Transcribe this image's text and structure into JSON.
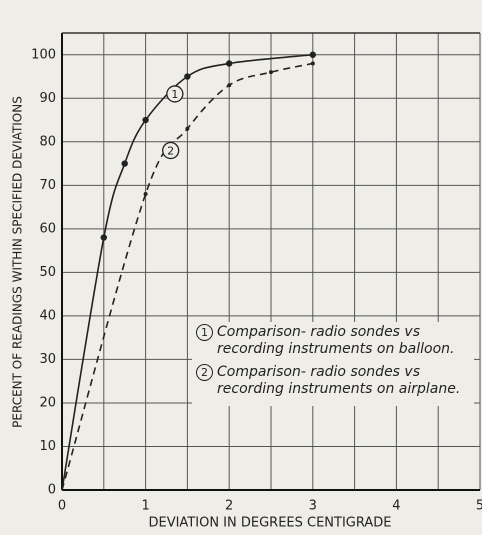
{
  "chart_data": {
    "type": "line",
    "xlabel": "DEVIATION IN DEGREES CENTIGRADE",
    "ylabel": "PERCENT OF READINGS WITHIN SPECIFIED DEVIATIONS",
    "xlim": [
      0,
      5
    ],
    "ylim": [
      0,
      105
    ],
    "xticks": [
      0,
      1,
      2,
      3,
      4,
      5
    ],
    "yticks": [
      0,
      10,
      20,
      30,
      40,
      50,
      60,
      70,
      80,
      90,
      100
    ],
    "grid": true,
    "series": [
      {
        "name": "Comparison- radio sondes vs recording instruments on balloon.",
        "marker_label": "1",
        "color": "#222",
        "dashed": false,
        "x": [
          0,
          0.5,
          0.75,
          1,
          1.5,
          2,
          3
        ],
        "values": [
          0,
          58,
          75,
          85,
          95,
          98,
          100
        ]
      },
      {
        "name": "Comparison- radio sondes vs recording instruments on airplane.",
        "marker_label": "2",
        "color": "#222",
        "dashed": true,
        "x": [
          0,
          1,
          1.5,
          2,
          2.5,
          3
        ],
        "values": [
          0,
          68,
          83,
          93,
          96,
          98
        ]
      }
    ]
  }
}
